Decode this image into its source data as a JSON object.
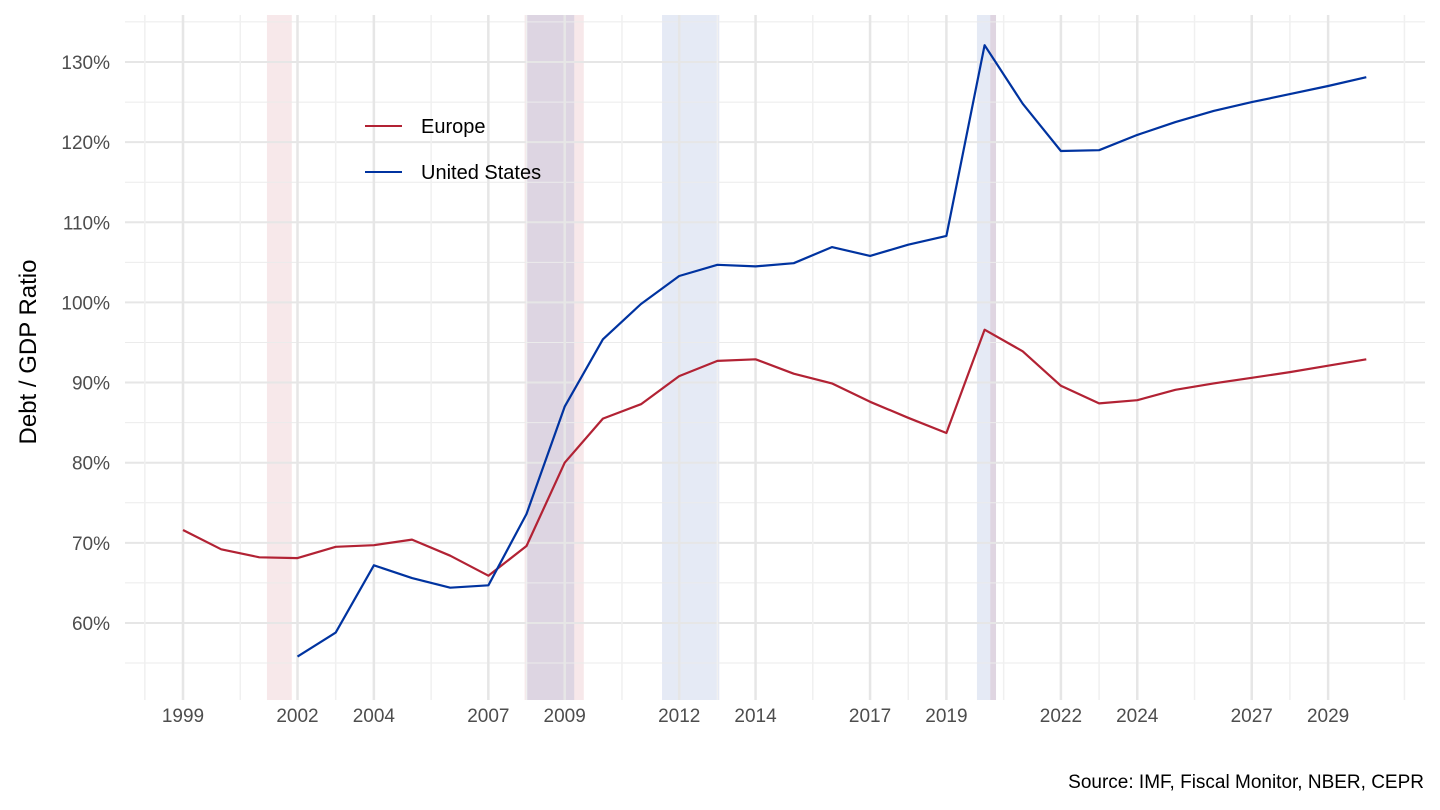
{
  "chart_data": {
    "type": "line",
    "title": "",
    "xlabel": "",
    "ylabel": "Debt / GDP Ratio",
    "caption": "Source: IMF, Fiscal Monitor, NBER, CEPR",
    "xlim": [
      1997.5,
      2031.8
    ],
    "ylim": [
      53,
      136
    ],
    "x_ticks": [
      1999,
      2002,
      2004,
      2007,
      2009,
      2012,
      2014,
      2017,
      2019,
      2022,
      2024,
      2027,
      2029
    ],
    "y_ticks": [
      60,
      70,
      80,
      90,
      100,
      110,
      120,
      130
    ],
    "y_tick_labels": [
      "60%",
      "70%",
      "80%",
      "90%",
      "100%",
      "110%",
      "120%",
      "130%"
    ],
    "grid": true,
    "legend": {
      "placement": "top-left"
    },
    "series": [
      {
        "name": "Europe",
        "color": "#B22234",
        "x": [
          1999,
          2000,
          2001,
          2002,
          2003,
          2004,
          2005,
          2006,
          2007,
          2008,
          2009,
          2010,
          2011,
          2012,
          2013,
          2014,
          2015,
          2016,
          2017,
          2018,
          2019,
          2020,
          2021,
          2022,
          2023,
          2024,
          2025,
          2026,
          2027,
          2028,
          2029,
          2030
        ],
        "y": [
          71.6,
          69.2,
          68.2,
          68.1,
          69.5,
          69.7,
          70.4,
          68.4,
          65.9,
          69.6,
          80.0,
          85.5,
          87.3,
          90.8,
          92.7,
          92.9,
          91.1,
          89.9,
          87.6,
          85.6,
          83.7,
          96.6,
          93.9,
          89.6,
          87.4,
          87.8,
          89.1,
          89.9,
          90.6,
          91.3,
          92.1,
          92.9
        ]
      },
      {
        "name": "United States",
        "color": "#0033A0",
        "x": [
          2002,
          2003,
          2004,
          2005,
          2006,
          2007,
          2008,
          2009,
          2010,
          2011,
          2012,
          2013,
          2014,
          2015,
          2016,
          2017,
          2018,
          2019,
          2020,
          2021,
          2022,
          2023,
          2024,
          2025,
          2026,
          2027,
          2028,
          2029,
          2030
        ],
        "y": [
          55.8,
          58.8,
          67.2,
          65.6,
          64.4,
          64.7,
          73.6,
          87.0,
          95.4,
          99.8,
          103.3,
          104.7,
          104.5,
          104.9,
          106.9,
          105.8,
          107.2,
          108.3,
          132.1,
          124.8,
          118.9,
          119.0,
          120.9,
          122.5,
          123.9,
          125.0,
          126.0,
          127.0,
          128.1
        ]
      }
    ],
    "recession_bands": [
      {
        "start": 2001.2,
        "end": 2001.85,
        "color": "#B22234"
      },
      {
        "start": 2007.95,
        "end": 2009.5,
        "color": "#B22234"
      },
      {
        "start": 2008.0,
        "end": 2009.25,
        "color": "#0033A0"
      },
      {
        "start": 2011.55,
        "end": 2013.05,
        "color": "#0033A0"
      },
      {
        "start": 2019.8,
        "end": 2020.3,
        "color": "#0033A0"
      },
      {
        "start": 2020.15,
        "end": 2020.3,
        "color": "#B22234"
      }
    ]
  }
}
